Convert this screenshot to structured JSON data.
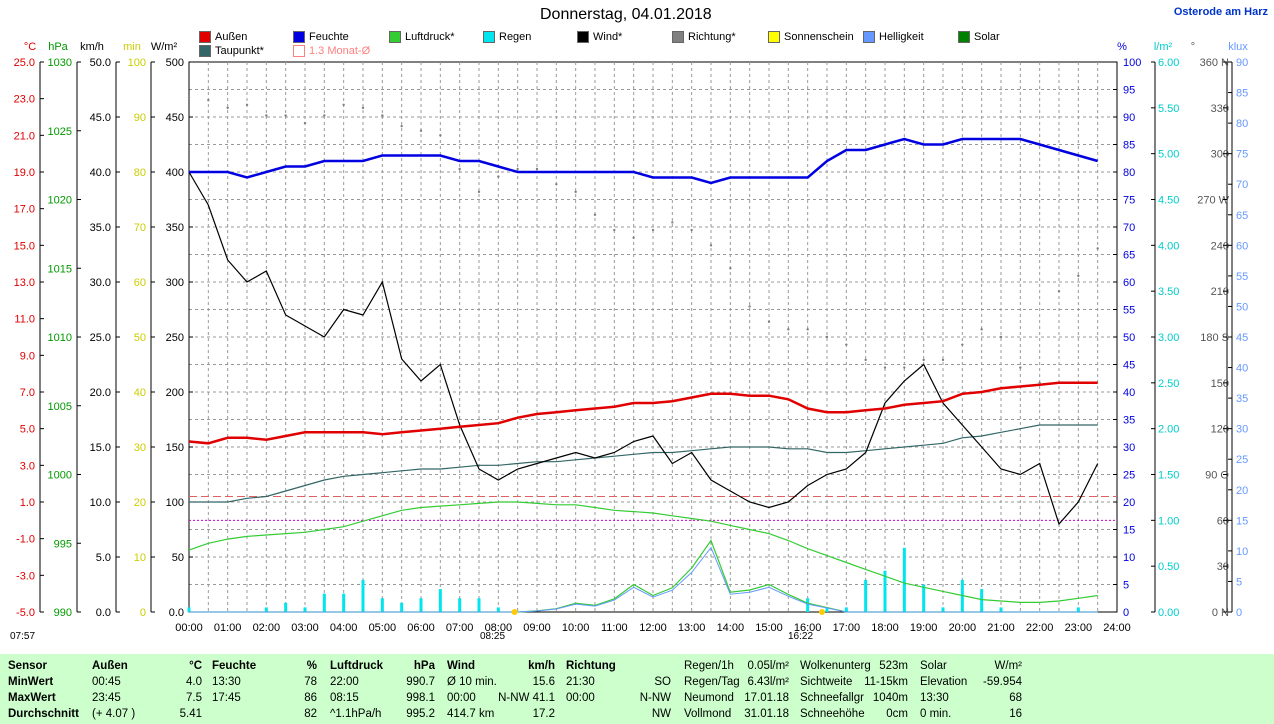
{
  "title": "Donnerstag, 04.01.2018",
  "station": "Osterode am Harz",
  "legend": [
    {
      "label": "Außen",
      "color": "#e00000",
      "type": "fill"
    },
    {
      "label": "Feuchte",
      "color": "#0000e0",
      "type": "fill"
    },
    {
      "label": "Luftdruck*",
      "color": "#33cc33",
      "type": "fill"
    },
    {
      "label": "Regen",
      "color": "#00e5ee",
      "type": "fill"
    },
    {
      "label": "Wind*",
      "color": "#000000",
      "type": "fill"
    },
    {
      "label": "Richtung*",
      "color": "#808080",
      "type": "fill"
    },
    {
      "label": "Sonnenschein",
      "color": "#ffff00",
      "type": "fill"
    },
    {
      "label": "Helligkeit",
      "color": "#6699ff",
      "type": "fill"
    },
    {
      "label": "Solar",
      "color": "#008000",
      "type": "fill"
    },
    {
      "label": "Taupunkt*",
      "color": "#336666",
      "type": "fill"
    },
    {
      "label": "1.3 Monat-Ø",
      "color": "#ff8080",
      "type": "outline"
    }
  ],
  "axis_units": {
    "temp": "°C",
    "pressure": "hPa",
    "wind": "km/h",
    "sunshine": "min",
    "solar": "W/m²",
    "humidity": "%",
    "rain": "l/m²",
    "direction": "°",
    "brightness": "klux"
  },
  "axes": {
    "temp": [
      "25.0",
      "23.0",
      "21.0",
      "19.0",
      "17.0",
      "15.0",
      "13.0",
      "11.0",
      "9.0",
      "7.0",
      "5.0",
      "3.0",
      "1.0",
      "-1.0",
      "-3.0",
      "-5.0"
    ],
    "pressure": [
      "1030",
      "1025",
      "1020",
      "1015",
      "1010",
      "1005",
      "1000",
      "995",
      "990"
    ],
    "wind": [
      "50.0",
      "45.0",
      "40.0",
      "35.0",
      "30.0",
      "25.0",
      "20.0",
      "15.0",
      "10.0",
      "5.0",
      "0.0"
    ],
    "sunshine": [
      "100",
      "90",
      "80",
      "70",
      "60",
      "50",
      "40",
      "30",
      "20",
      "10",
      "0"
    ],
    "solar": [
      "500",
      "450",
      "400",
      "350",
      "300",
      "250",
      "200",
      "150",
      "100",
      "50",
      "0.0"
    ],
    "humidity": [
      "100",
      "95",
      "90",
      "85",
      "80",
      "75",
      "70",
      "65",
      "60",
      "55",
      "50",
      "45",
      "40",
      "35",
      "30",
      "25",
      "20",
      "15",
      "10",
      "5",
      "0"
    ],
    "rain": [
      "6.00",
      "5.50",
      "5.00",
      "4.50",
      "4.00",
      "3.50",
      "3.00",
      "2.50",
      "2.00",
      "1.50",
      "1.00",
      "0.50",
      "0.00"
    ],
    "direction": [
      "360 N",
      "330",
      "300",
      "270 W",
      "240",
      "210",
      "180 S",
      "150",
      "120",
      "90 O",
      "60",
      "30",
      "0 N"
    ],
    "brightness": [
      "90",
      "85",
      "80",
      "75",
      "70",
      "65",
      "60",
      "55",
      "50",
      "45",
      "40",
      "35",
      "30",
      "25",
      "20",
      "15",
      "10",
      "5",
      "0"
    ],
    "time": [
      "00:00",
      "01:00",
      "02:00",
      "03:00",
      "04:00",
      "05:00",
      "06:00",
      "07:00",
      "08:00",
      "09:00",
      "10:00",
      "11:00",
      "12:00",
      "13:00",
      "14:00",
      "15:00",
      "16:00",
      "17:00",
      "18:00",
      "19:00",
      "20:00",
      "21:00",
      "22:00",
      "23:00",
      "24:00"
    ]
  },
  "markers": {
    "left": "07:57",
    "sunrise": "08:25",
    "sunset": "16:22"
  },
  "chart_data": {
    "type": "line",
    "x_hours": [
      0,
      0.5,
      1,
      1.5,
      2,
      2.5,
      3,
      3.5,
      4,
      4.5,
      5,
      5.5,
      6,
      6.5,
      7,
      7.5,
      8,
      8.5,
      9,
      9.5,
      10,
      10.5,
      11,
      11.5,
      12,
      12.5,
      13,
      13.5,
      14,
      14.5,
      15,
      15.5,
      16,
      16.5,
      17,
      17.5,
      18,
      18.5,
      19,
      19.5,
      20,
      20.5,
      21,
      21.5,
      22,
      22.5,
      23,
      23.5
    ],
    "series": [
      {
        "name": "Außen",
        "unit": "°C",
        "color": "#e00000",
        "values": [
          4.3,
          4.2,
          4.5,
          4.5,
          4.4,
          4.6,
          4.8,
          4.8,
          4.8,
          4.8,
          4.7,
          4.8,
          4.9,
          5.0,
          5.1,
          5.2,
          5.3,
          5.6,
          5.8,
          5.9,
          6.0,
          6.1,
          6.2,
          6.4,
          6.4,
          6.5,
          6.7,
          6.9,
          6.9,
          6.8,
          6.8,
          6.6,
          6.1,
          5.9,
          5.9,
          6.0,
          6.1,
          6.3,
          6.4,
          6.5,
          6.9,
          7.0,
          7.2,
          7.3,
          7.4,
          7.5,
          7.5,
          7.5
        ]
      },
      {
        "name": "Feuchte",
        "unit": "%",
        "color": "#0000e0",
        "values": [
          80,
          80,
          80,
          79,
          80,
          81,
          81,
          82,
          82,
          82,
          83,
          83,
          83,
          83,
          82,
          82,
          81,
          80,
          80,
          80,
          80,
          80,
          80,
          80,
          79,
          79,
          79,
          78,
          79,
          79,
          79,
          79,
          79,
          82,
          84,
          84,
          85,
          86,
          85,
          85,
          86,
          86,
          86,
          86,
          85,
          84,
          83,
          82
        ]
      },
      {
        "name": "Luftdruck",
        "unit": "hPa",
        "color": "#33cc33",
        "values": [
          994.5,
          995.0,
          995.3,
          995.5,
          995.6,
          995.7,
          995.8,
          996.0,
          996.2,
          996.6,
          997.0,
          997.4,
          997.6,
          997.7,
          997.8,
          997.9,
          998.0,
          998.0,
          997.9,
          997.8,
          997.8,
          997.6,
          997.4,
          997.3,
          997.2,
          997.0,
          996.8,
          996.6,
          996.3,
          996.0,
          995.7,
          995.2,
          994.6,
          994.1,
          993.6,
          993.1,
          992.6,
          992.1,
          991.8,
          991.5,
          991.2,
          990.9,
          990.8,
          990.7,
          990.7,
          990.8,
          991.0,
          991.2
        ]
      },
      {
        "name": "Wind",
        "unit": "km/h",
        "color": "#000000",
        "values": [
          40.0,
          37.0,
          32.0,
          30.0,
          31.0,
          27.0,
          26.0,
          25.0,
          27.5,
          27.0,
          30.0,
          23.0,
          21.0,
          22.5,
          17.0,
          13.0,
          12.0,
          13.0,
          13.5,
          14.0,
          14.5,
          14.0,
          14.5,
          15.5,
          16.0,
          13.5,
          14.5,
          12.0,
          11.0,
          10.0,
          9.5,
          10.0,
          11.5,
          12.5,
          13.0,
          14.5,
          19.0,
          21.0,
          22.5,
          19.0,
          17.0,
          15.0,
          13.0,
          12.5,
          13.5,
          8.0,
          10.0,
          13.5
        ]
      },
      {
        "name": "Richtung",
        "unit": "°",
        "color": "#808080",
        "values": [
          337,
          335,
          330,
          332,
          325,
          325,
          320,
          325,
          332,
          330,
          325,
          318,
          315,
          312,
          290,
          275,
          285,
          290,
          290,
          280,
          275,
          260,
          250,
          245,
          250,
          255,
          250,
          240,
          225,
          200,
          190,
          185,
          185,
          180,
          175,
          165,
          160,
          160,
          165,
          165,
          175,
          185,
          180,
          160,
          150,
          210,
          220,
          238
        ]
      },
      {
        "name": "Taupunkt",
        "unit": "°C",
        "color": "#336666",
        "values": [
          1.0,
          1.0,
          1.0,
          1.2,
          1.3,
          1.6,
          1.9,
          2.2,
          2.4,
          2.5,
          2.6,
          2.7,
          2.8,
          2.8,
          2.9,
          3.0,
          3.0,
          3.1,
          3.2,
          3.2,
          3.3,
          3.4,
          3.5,
          3.6,
          3.7,
          3.7,
          3.8,
          3.9,
          4.0,
          4.0,
          4.0,
          3.9,
          3.9,
          3.7,
          3.7,
          3.8,
          3.9,
          4.0,
          4.1,
          4.2,
          4.5,
          4.6,
          4.8,
          5.0,
          5.2,
          5.2,
          5.2,
          5.2
        ]
      },
      {
        "name": "Solar",
        "unit": "W/m²",
        "color": "#33cc33",
        "values": [
          0,
          0,
          0,
          0,
          0,
          0,
          0,
          0,
          0,
          0,
          0,
          0,
          0,
          0,
          0,
          0,
          0,
          0,
          1,
          3,
          8,
          6,
          12,
          25,
          15,
          22,
          40,
          65,
          18,
          20,
          25,
          16,
          8,
          4,
          0,
          0,
          0,
          0,
          0,
          0,
          0,
          0,
          0,
          0,
          0,
          0,
          0,
          0
        ]
      },
      {
        "name": "Regen",
        "unit": "l/m²",
        "color": "#00e5ee",
        "values": [
          0.05,
          0,
          0,
          0,
          0.05,
          0.1,
          0.05,
          0.2,
          0.2,
          0.35,
          0.15,
          0.1,
          0.15,
          0.25,
          0.15,
          0.15,
          0.05,
          0,
          0,
          0,
          0,
          0,
          0,
          0,
          0,
          0,
          0,
          0,
          0,
          0,
          0,
          0,
          0.15,
          0.05,
          0.05,
          0.35,
          0.45,
          0.7,
          0.3,
          0.05,
          0.35,
          0.25,
          0.05,
          0,
          0,
          0,
          0.05,
          0
        ]
      }
    ],
    "hlines": [
      {
        "name": "1.3 Monat-Ø Außen",
        "value": 1.3,
        "unit": "°C",
        "color": "#e06060"
      }
    ],
    "ylim_temp": [
      -5,
      25
    ],
    "ylim_humidity": [
      0,
      100
    ],
    "xlim": [
      0,
      24
    ]
  },
  "summary": {
    "cols": [
      {
        "head": [
          "Sensor"
        ],
        "rows": [
          [
            "MinWert"
          ],
          [
            "MaxWert"
          ],
          [
            "Durchschnitt"
          ]
        ]
      },
      {
        "head": [
          "Außen",
          "°C"
        ],
        "rows": [
          [
            "00:45",
            "4.0"
          ],
          [
            "23:45",
            "7.5"
          ],
          [
            "(+ 4.07 )",
            "5.41"
          ]
        ]
      },
      {
        "head": [
          "Feuchte",
          "%"
        ],
        "rows": [
          [
            "13:30",
            "78"
          ],
          [
            "17:45",
            "86"
          ],
          [
            "",
            "82"
          ]
        ]
      },
      {
        "head": [
          "Luftdruck",
          "hPa"
        ],
        "rows": [
          [
            "22:00",
            "990.7"
          ],
          [
            "08:15",
            "998.1"
          ],
          [
            "^1.1hPa/h",
            "995.2"
          ]
        ]
      },
      {
        "head": [
          "Wind",
          "km/h"
        ],
        "rows": [
          [
            "Ø 10 min.",
            "15.6"
          ],
          [
            "00:00",
            "N-NW 41.1"
          ],
          [
            "414.7 km",
            "17.2"
          ]
        ]
      },
      {
        "head": [
          "Richtung",
          ""
        ],
        "rows": [
          [
            "21:30",
            "SO"
          ],
          [
            "00:00",
            "N-NW"
          ],
          [
            "",
            "NW"
          ]
        ]
      },
      {
        "head": [
          "Regen/1h",
          "0.05l/m²"
        ],
        "rows": [
          [
            "Regen/Tag",
            "6.43l/m²"
          ],
          [
            "Neumond",
            "17.01.18"
          ],
          [
            "Vollmond",
            "31.01.18"
          ]
        ]
      },
      {
        "head": [
          "Wolkenunterg",
          "523m"
        ],
        "rows": [
          [
            "Sichtweite",
            "11-15km"
          ],
          [
            "Schneefallgr",
            "1040m"
          ],
          [
            "Schneehöhe",
            "0cm"
          ]
        ]
      },
      {
        "head": [
          "Solar",
          "W/m²"
        ],
        "rows": [
          [
            "Elevation",
            "-59.954"
          ],
          [
            "13:30",
            "68"
          ],
          [
            "0 min.",
            "16"
          ]
        ]
      }
    ]
  }
}
